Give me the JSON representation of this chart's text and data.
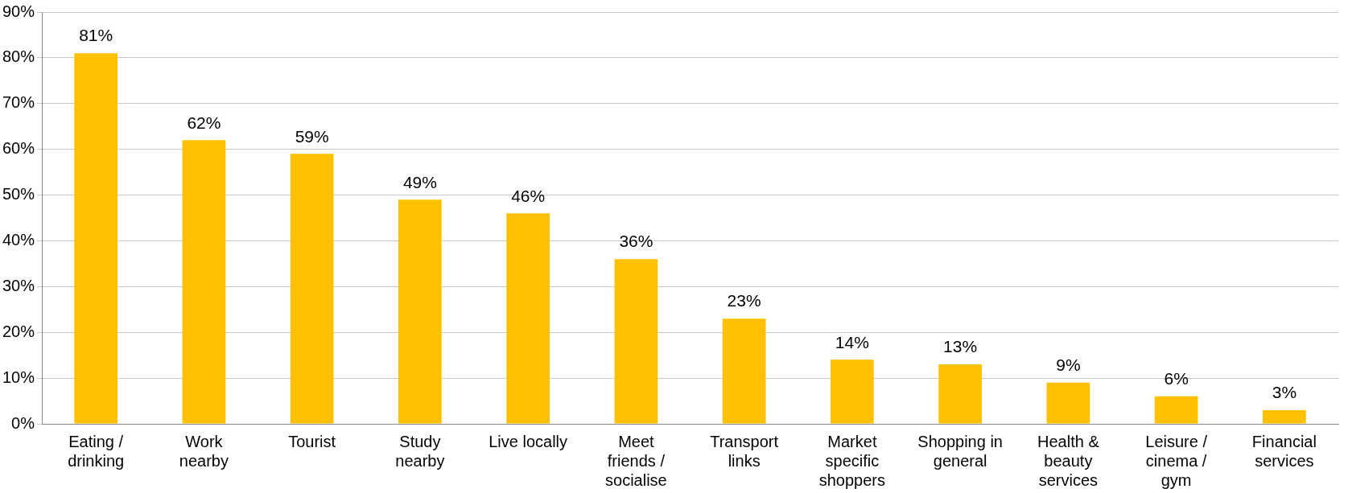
{
  "chart_data": {
    "type": "bar",
    "categories": [
      "Eating / drinking",
      "Work nearby",
      "Tourist",
      "Study nearby",
      "Live locally",
      "Meet friends / socialise",
      "Transport links",
      "Market specific shoppers",
      "Shopping in general",
      "Health & beauty services",
      "Leisure / cinema / gym",
      "Financial services"
    ],
    "values": [
      81,
      62,
      59,
      49,
      46,
      36,
      23,
      14,
      13,
      9,
      6,
      3
    ],
    "value_labels": [
      "81%",
      "62%",
      "59%",
      "49%",
      "46%",
      "36%",
      "23%",
      "14%",
      "13%",
      "9%",
      "6%",
      "3%"
    ],
    "color": "#ffc000",
    "ylim": [
      0,
      90
    ],
    "yticks": [
      {
        "value": 0,
        "label": "0%"
      },
      {
        "value": 10,
        "label": "10%"
      },
      {
        "value": 20,
        "label": "20%"
      },
      {
        "value": 30,
        "label": "30%"
      },
      {
        "value": 40,
        "label": "40%"
      },
      {
        "value": 50,
        "label": "50%"
      },
      {
        "value": 60,
        "label": "60%"
      },
      {
        "value": 70,
        "label": "70%"
      },
      {
        "value": 80,
        "label": "80%"
      },
      {
        "value": 90,
        "label": "90%"
      }
    ],
    "grid": "y",
    "legend": false
  }
}
